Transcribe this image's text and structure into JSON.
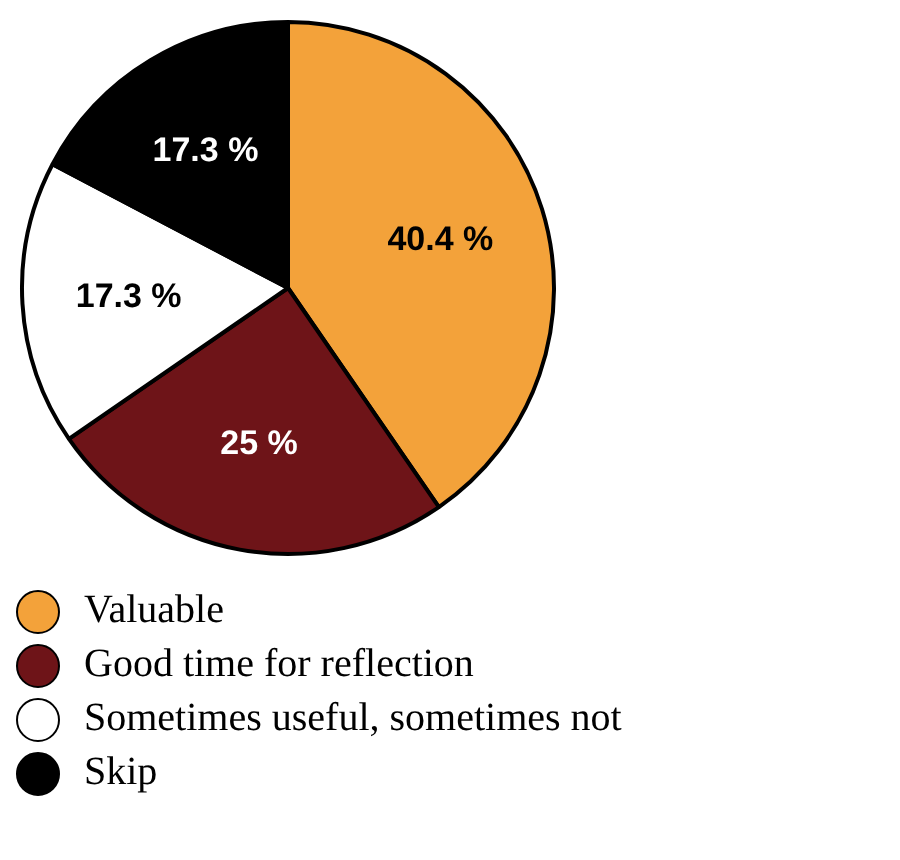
{
  "chart_data": {
    "type": "pie",
    "categories": [
      "Valuable",
      "Good time for reflection",
      "Sometimes useful, sometimes not",
      "Skip"
    ],
    "values": [
      40.4,
      25,
      17.3,
      17.3
    ],
    "colors": [
      "#f3a23a",
      "#6e1418",
      "#ffffff",
      "#000000"
    ],
    "value_labels": [
      "40.4 %",
      "25 %",
      "17.3 %",
      "17.3 %"
    ],
    "legend": "bottom"
  }
}
